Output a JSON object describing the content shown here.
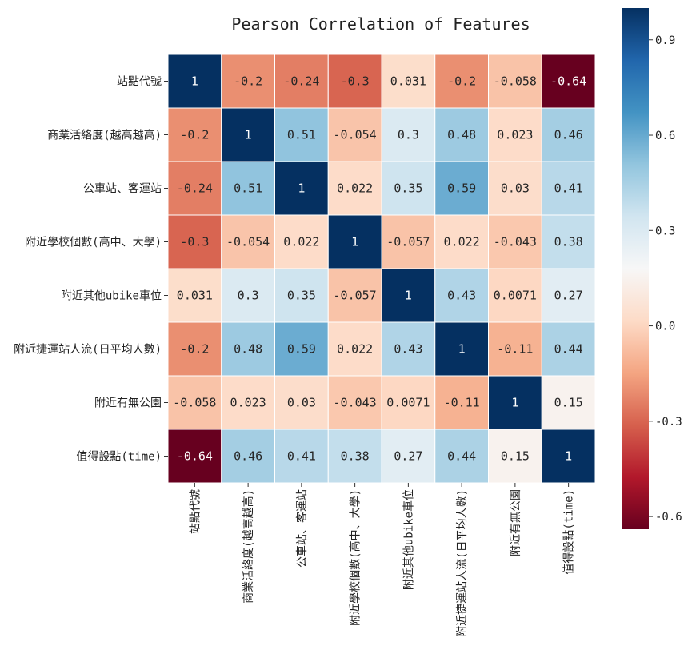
{
  "chart_data": {
    "type": "heatmap",
    "title": "Pearson Correlation of Features",
    "labels": [
      "站點代號",
      "商業活絡度(越高越高)",
      "公車站、客運站",
      "附近學校個數(高中、大學)",
      "附近其他ubike車位",
      "附近捷運站人流(日平均人數)",
      "附近有無公園",
      "值得設點(time)"
    ],
    "matrix": [
      [
        1,
        -0.2,
        -0.24,
        -0.3,
        0.031,
        -0.2,
        -0.058,
        -0.64
      ],
      [
        -0.2,
        1,
        0.51,
        -0.054,
        0.3,
        0.48,
        0.023,
        0.46
      ],
      [
        -0.24,
        0.51,
        1,
        0.022,
        0.35,
        0.59,
        0.03,
        0.41
      ],
      [
        -0.3,
        -0.054,
        0.022,
        1,
        -0.057,
        0.022,
        -0.043,
        0.38
      ],
      [
        0.031,
        0.3,
        0.35,
        -0.057,
        1,
        0.43,
        0.0071,
        0.27
      ],
      [
        -0.2,
        0.48,
        0.59,
        0.022,
        0.43,
        1,
        -0.11,
        0.44
      ],
      [
        -0.058,
        0.023,
        0.03,
        -0.043,
        0.0071,
        -0.11,
        1,
        0.15
      ],
      [
        -0.64,
        0.46,
        0.41,
        0.38,
        0.27,
        0.44,
        0.15,
        1
      ]
    ],
    "cell_labels": [
      [
        "1",
        "-0.2",
        "-0.24",
        "-0.3",
        "0.031",
        "-0.2",
        "-0.058",
        "-0.64"
      ],
      [
        "-0.2",
        "1",
        "0.51",
        "-0.054",
        "0.3",
        "0.48",
        "0.023",
        "0.46"
      ],
      [
        "-0.24",
        "0.51",
        "1",
        "0.022",
        "0.35",
        "0.59",
        "0.03",
        "0.41"
      ],
      [
        "-0.3",
        "-0.054",
        "0.022",
        "1",
        "-0.057",
        "0.022",
        "-0.043",
        "0.38"
      ],
      [
        "0.031",
        "0.3",
        "0.35",
        "-0.057",
        "1",
        "0.43",
        "0.0071",
        "0.27"
      ],
      [
        "-0.2",
        "0.48",
        "0.59",
        "0.022",
        "0.43",
        "1",
        "-0.11",
        "0.44"
      ],
      [
        "-0.058",
        "0.023",
        "0.03",
        "-0.043",
        "0.0071",
        "-0.11",
        "1",
        "0.15"
      ],
      [
        "-0.64",
        "0.46",
        "0.41",
        "0.38",
        "0.27",
        "0.44",
        "0.15",
        "1"
      ]
    ],
    "colormap": "RdBu",
    "vmin": -0.64,
    "vmax": 1,
    "colorbar_ticks": [
      0.9,
      0.6,
      0.3,
      0.0,
      -0.3,
      -0.6
    ],
    "colorbar_tick_labels": [
      "0.9",
      "0.6",
      "0.3",
      "0.0",
      "-0.3",
      "-0.6"
    ],
    "colorbar_position": "right",
    "gridlines": "white"
  }
}
